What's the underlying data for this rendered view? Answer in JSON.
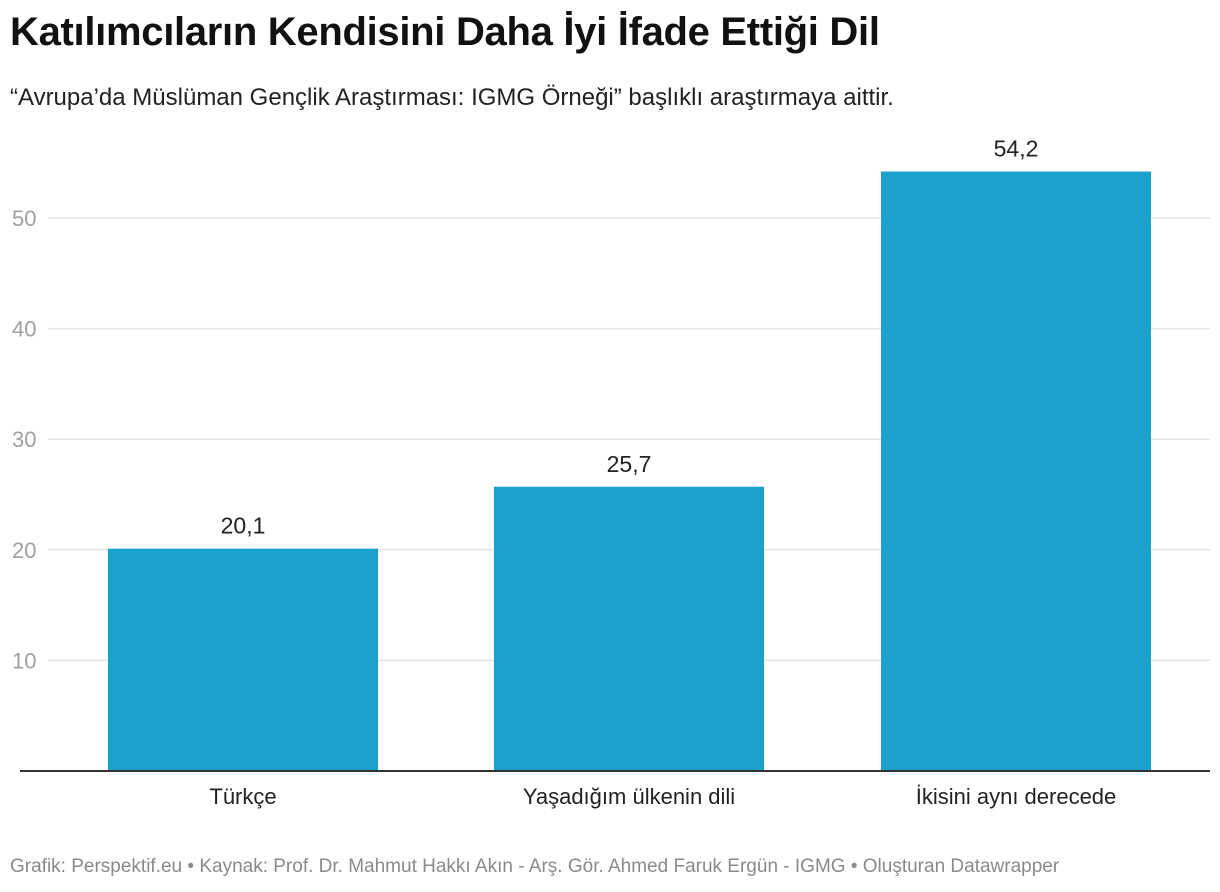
{
  "header": {
    "title": "Katılımcıların Kendisini Daha İyi İfade Ettiği Dil",
    "subtitle": "“Avrupa’da Müslüman Gençlik Araştırması: IGMG Örneği” başlıklı araştırmaya aittir."
  },
  "footer": {
    "text": "Grafik: Perspektif.eu • Kaynak: Prof. Dr. Mahmut Hakkı Akın - Arş. Gör. Ahmed Faruk Ergün - IGMG • Oluşturan Datawrapper"
  },
  "colors": {
    "bar": "#1aa1cc",
    "grid": "#e3e3e3",
    "axis": "#333333",
    "tick_label": "#a0a0a0",
    "value_label": "#222222"
  },
  "chart_data": {
    "type": "bar",
    "title": "Katılımcıların Kendisini Daha İyi İfade Ettiği Dil",
    "subtitle": "“Avrupa’da Müslüman Gençlik Araştırması: IGMG Örneği” başlıklı araştırmaya aittir.",
    "xlabel": "",
    "ylabel": "",
    "categories": [
      "Türkçe",
      "Yaşadığım ülkenin dili",
      "İkisini aynı derecede"
    ],
    "values": [
      20.1,
      25.7,
      54.2
    ],
    "value_labels": [
      "20,1",
      "25,7",
      "54,2"
    ],
    "yticks": [
      10,
      20,
      30,
      40,
      50
    ],
    "ylim": [
      0,
      55
    ],
    "grid": true,
    "legend": "none"
  }
}
